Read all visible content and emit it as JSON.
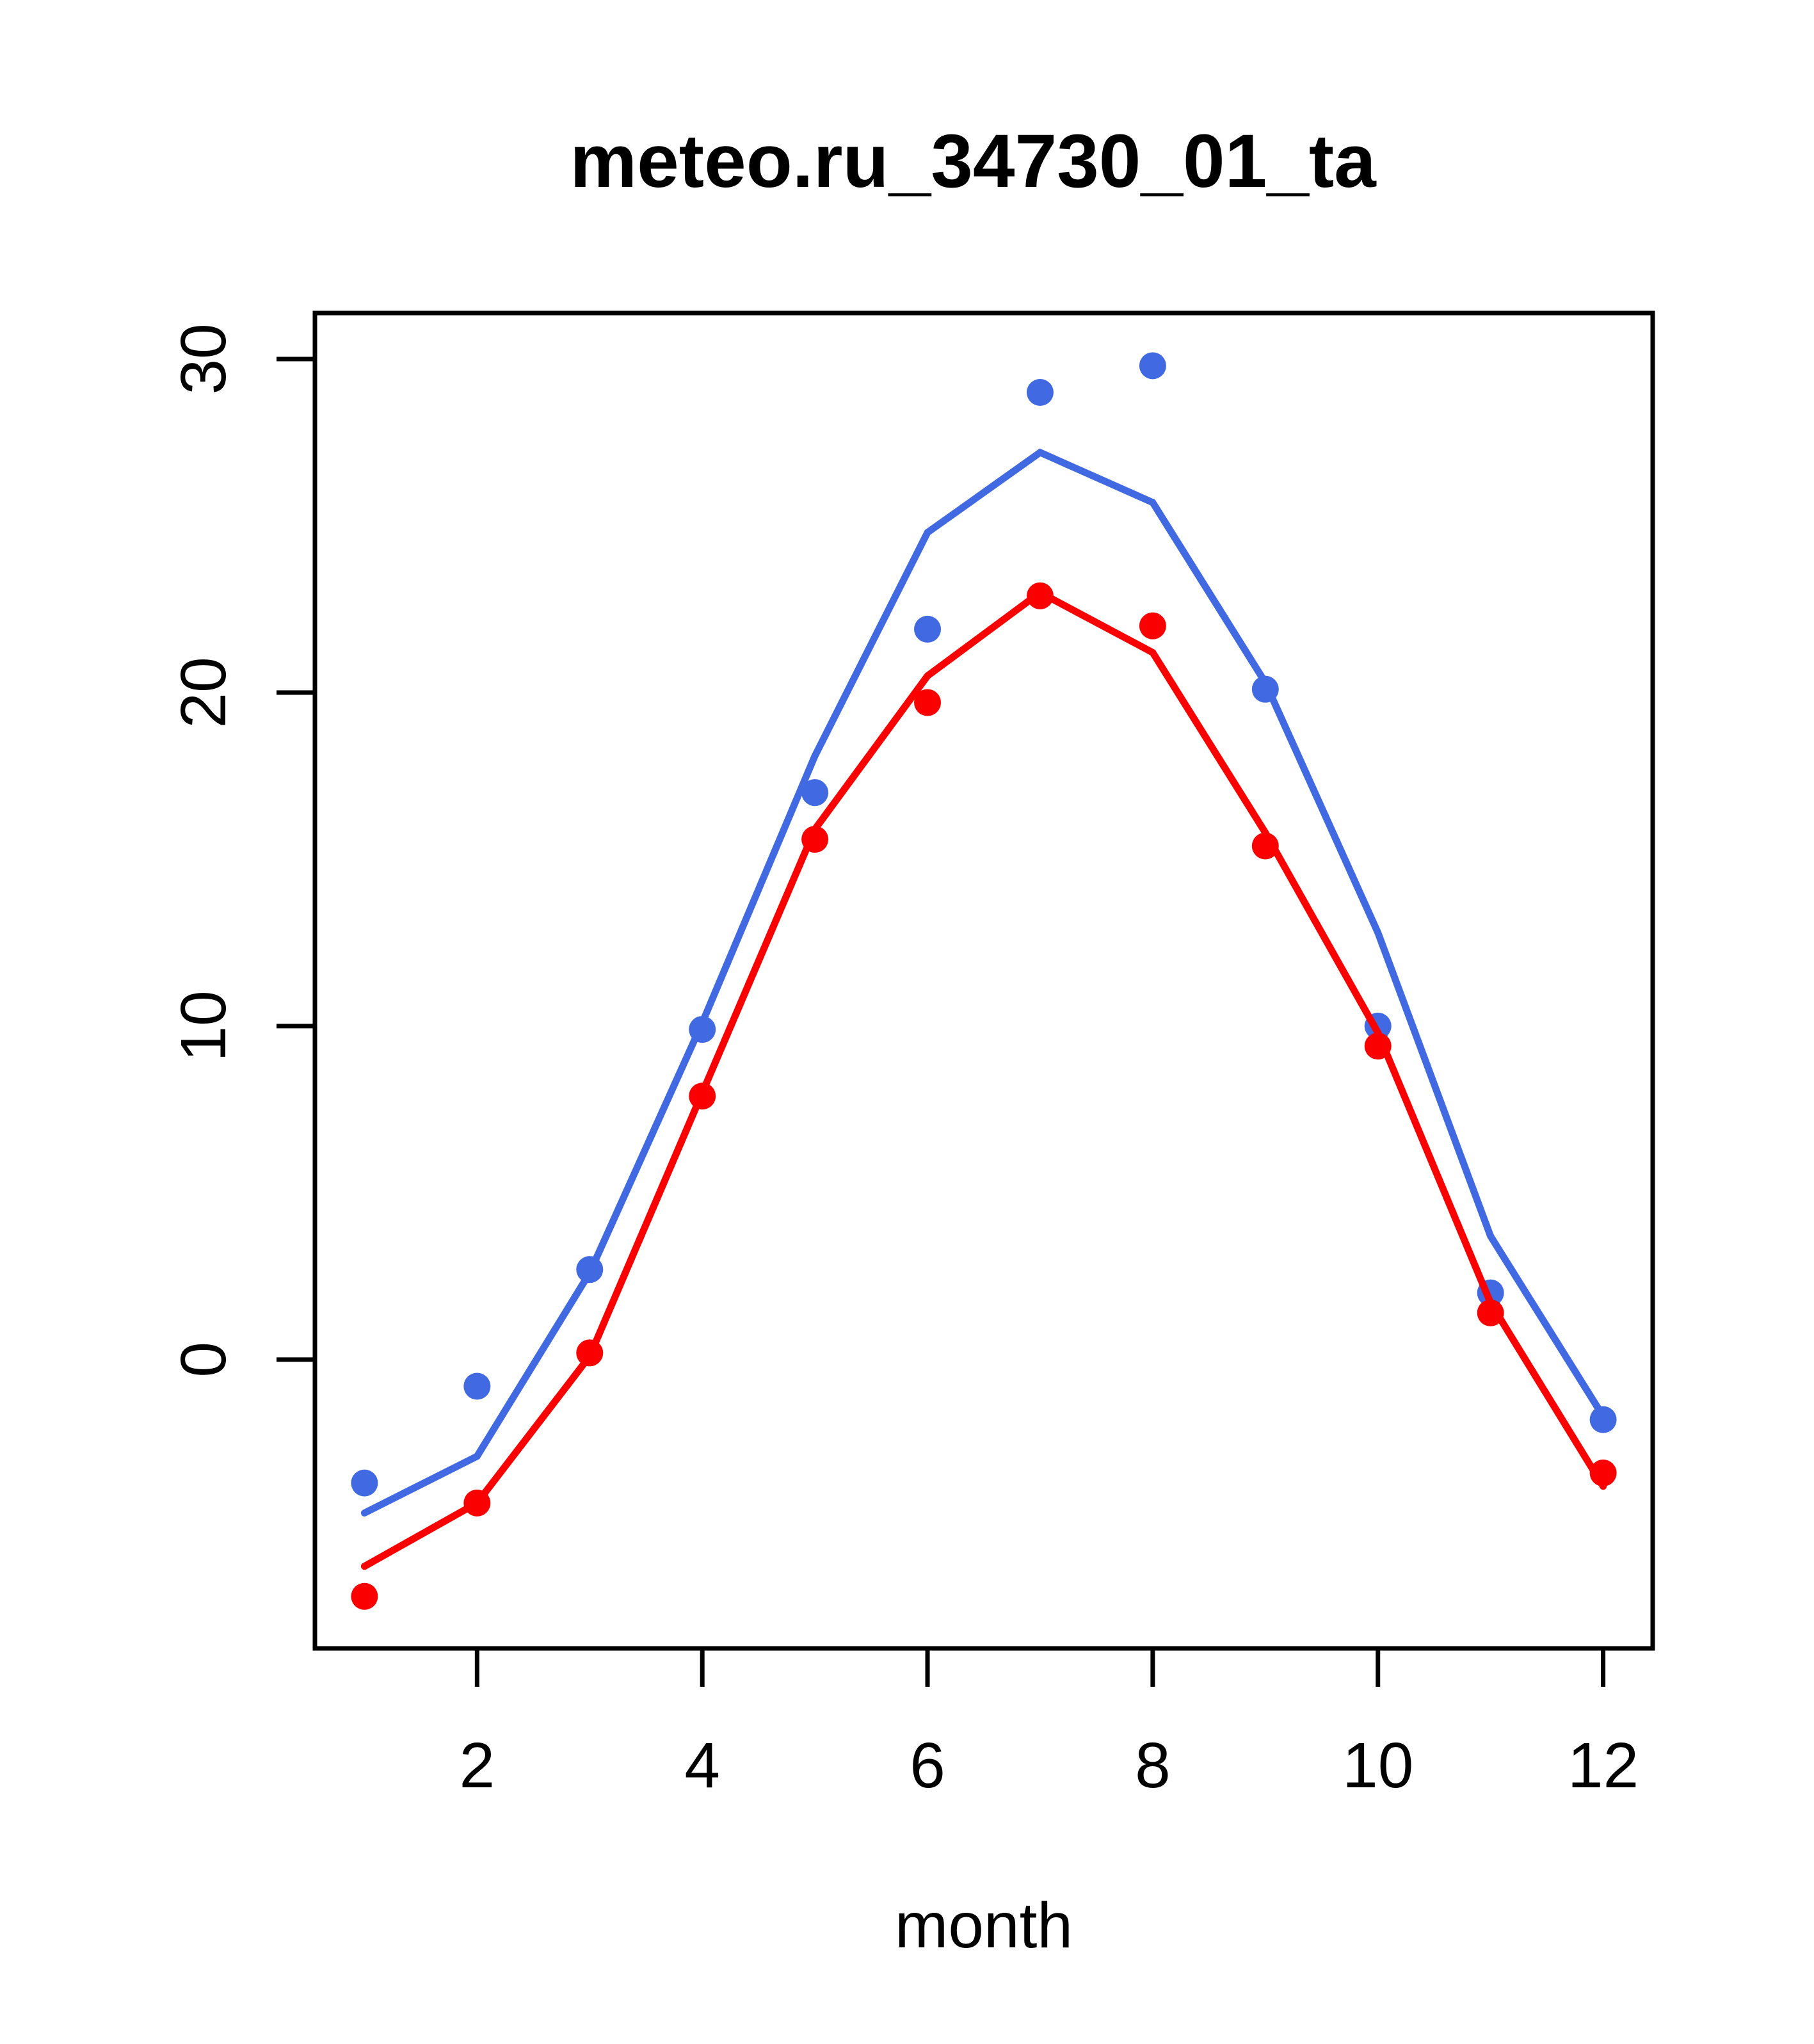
{
  "page": {
    "background_color": "#ffffff",
    "foreground_color": "#000000"
  },
  "chart_data": {
    "type": "line",
    "title": "meteo.ru_34730_01_ta",
    "xlabel": "month",
    "ylabel": "",
    "x": [
      1,
      2,
      3,
      4,
      5,
      6,
      7,
      8,
      9,
      10,
      11,
      12
    ],
    "xticks": [
      2,
      4,
      6,
      8,
      10,
      12
    ],
    "xtick_labels": [
      "2",
      "4",
      "6",
      "8",
      "10",
      "12"
    ],
    "yticks": [
      0,
      10,
      20,
      30
    ],
    "ytick_labels": [
      "0",
      "10",
      "20",
      "30"
    ],
    "xlim": [
      0.56,
      12.44
    ],
    "ylim": [
      -8.66,
      31.38
    ],
    "grid": false,
    "legend_position": "none",
    "colors": {
      "blue_series": "#4169E1",
      "red_series": "#FB0000",
      "axis": "#000000"
    },
    "series": [
      {
        "name": "blue_line",
        "kind": "line",
        "color": "#4169E1",
        "values": [
          -4.6,
          -2.9,
          2.6,
          10.1,
          18.1,
          24.8,
          27.2,
          25.7,
          20.3,
          12.8,
          3.7,
          -1.7
        ]
      },
      {
        "name": "blue_points",
        "kind": "points",
        "color": "#4169E1",
        "values": [
          -3.7,
          -0.8,
          2.7,
          9.9,
          17.0,
          21.9,
          29.0,
          29.8,
          20.1,
          10.0,
          2.0,
          -1.8
        ]
      },
      {
        "name": "red_line",
        "kind": "line",
        "color": "#FB0000",
        "values": [
          -6.2,
          -4.3,
          0.1,
          8.0,
          15.9,
          20.5,
          23.0,
          21.2,
          15.8,
          9.8,
          1.7,
          -3.8
        ]
      },
      {
        "name": "red_points",
        "kind": "points",
        "color": "#FB0000",
        "values": [
          -7.1,
          -4.3,
          0.2,
          7.9,
          15.6,
          19.7,
          22.9,
          22.0,
          15.4,
          9.4,
          1.4,
          -3.4
        ]
      }
    ]
  }
}
